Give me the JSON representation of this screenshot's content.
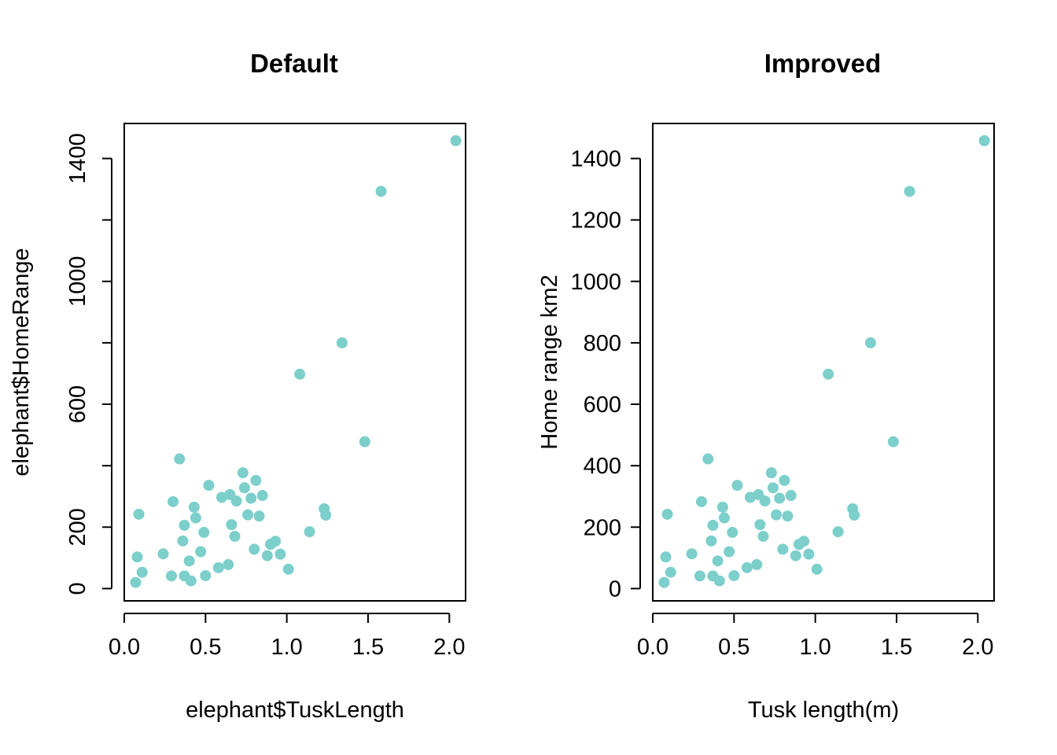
{
  "chart_data": [
    {
      "type": "scatter",
      "title": "Default",
      "xlabel": "elephant$TuskLength",
      "ylabel": "elephant$HomeRange",
      "xlim": [
        0,
        2.1
      ],
      "ylim": [
        -40,
        1514
      ],
      "xticks": [
        0,
        0.5,
        1,
        1.5,
        2
      ],
      "xtick_labels": [
        "0.0",
        "0.5",
        "1.0",
        "1.5",
        "2.0"
      ],
      "yticks": [
        0,
        200,
        400,
        600,
        800,
        1000,
        1200,
        1400
      ],
      "ytick_labels": [
        "0",
        "200",
        "",
        "600",
        "",
        "1000",
        "",
        "1400"
      ],
      "ytick_rotated": true,
      "point_color": "#7CCFCB",
      "x": [
        0.07,
        0.08,
        0.09,
        0.11,
        0.24,
        0.29,
        0.3,
        0.34,
        0.36,
        0.37,
        0.37,
        0.4,
        0.41,
        0.43,
        0.44,
        0.47,
        0.49,
        0.5,
        0.52,
        0.58,
        0.6,
        0.64,
        0.65,
        0.66,
        0.68,
        0.69,
        0.73,
        0.74,
        0.76,
        0.78,
        0.8,
        0.81,
        0.83,
        0.85,
        0.88,
        0.9,
        0.93,
        0.96,
        1.01,
        1.08,
        1.14,
        1.23,
        1.24,
        1.34,
        1.48,
        1.58,
        2.04
      ],
      "y": [
        20,
        103,
        242,
        53,
        113,
        41,
        283,
        422,
        155,
        206,
        41,
        90,
        25,
        265,
        230,
        120,
        183,
        42,
        336,
        68,
        297,
        78,
        306,
        208,
        170,
        285,
        377,
        328,
        240,
        294,
        128,
        352,
        236,
        303,
        107,
        144,
        154,
        112,
        63,
        698,
        185,
        260,
        239,
        800,
        478,
        1293,
        1458
      ]
    },
    {
      "type": "scatter",
      "title": "Improved",
      "xlabel": "Tusk length(m)",
      "ylabel": "Home range km2",
      "xlim": [
        0,
        2.1
      ],
      "ylim": [
        -40,
        1514
      ],
      "xticks": [
        0,
        0.5,
        1,
        1.5,
        2
      ],
      "xtick_labels": [
        "0.0",
        "0.5",
        "1.0",
        "1.5",
        "2.0"
      ],
      "yticks": [
        0,
        200,
        400,
        600,
        800,
        1000,
        1200,
        1400
      ],
      "ytick_labels": [
        "0",
        "200",
        "400",
        "600",
        "800",
        "1000",
        "1200",
        "1400"
      ],
      "ytick_rotated": false,
      "point_color": "#7CCFCB",
      "x": [
        0.07,
        0.08,
        0.09,
        0.11,
        0.24,
        0.29,
        0.3,
        0.34,
        0.36,
        0.37,
        0.37,
        0.4,
        0.41,
        0.43,
        0.44,
        0.47,
        0.49,
        0.5,
        0.52,
        0.58,
        0.6,
        0.64,
        0.65,
        0.66,
        0.68,
        0.69,
        0.73,
        0.74,
        0.76,
        0.78,
        0.8,
        0.81,
        0.83,
        0.85,
        0.88,
        0.9,
        0.93,
        0.96,
        1.01,
        1.08,
        1.14,
        1.23,
        1.24,
        1.34,
        1.48,
        1.58,
        2.04
      ],
      "y": [
        20,
        103,
        242,
        53,
        113,
        41,
        283,
        422,
        155,
        206,
        41,
        90,
        25,
        265,
        230,
        120,
        183,
        42,
        336,
        68,
        297,
        78,
        306,
        208,
        170,
        285,
        377,
        328,
        240,
        294,
        128,
        352,
        236,
        303,
        107,
        144,
        154,
        112,
        63,
        698,
        185,
        260,
        239,
        800,
        478,
        1293,
        1458
      ]
    }
  ]
}
